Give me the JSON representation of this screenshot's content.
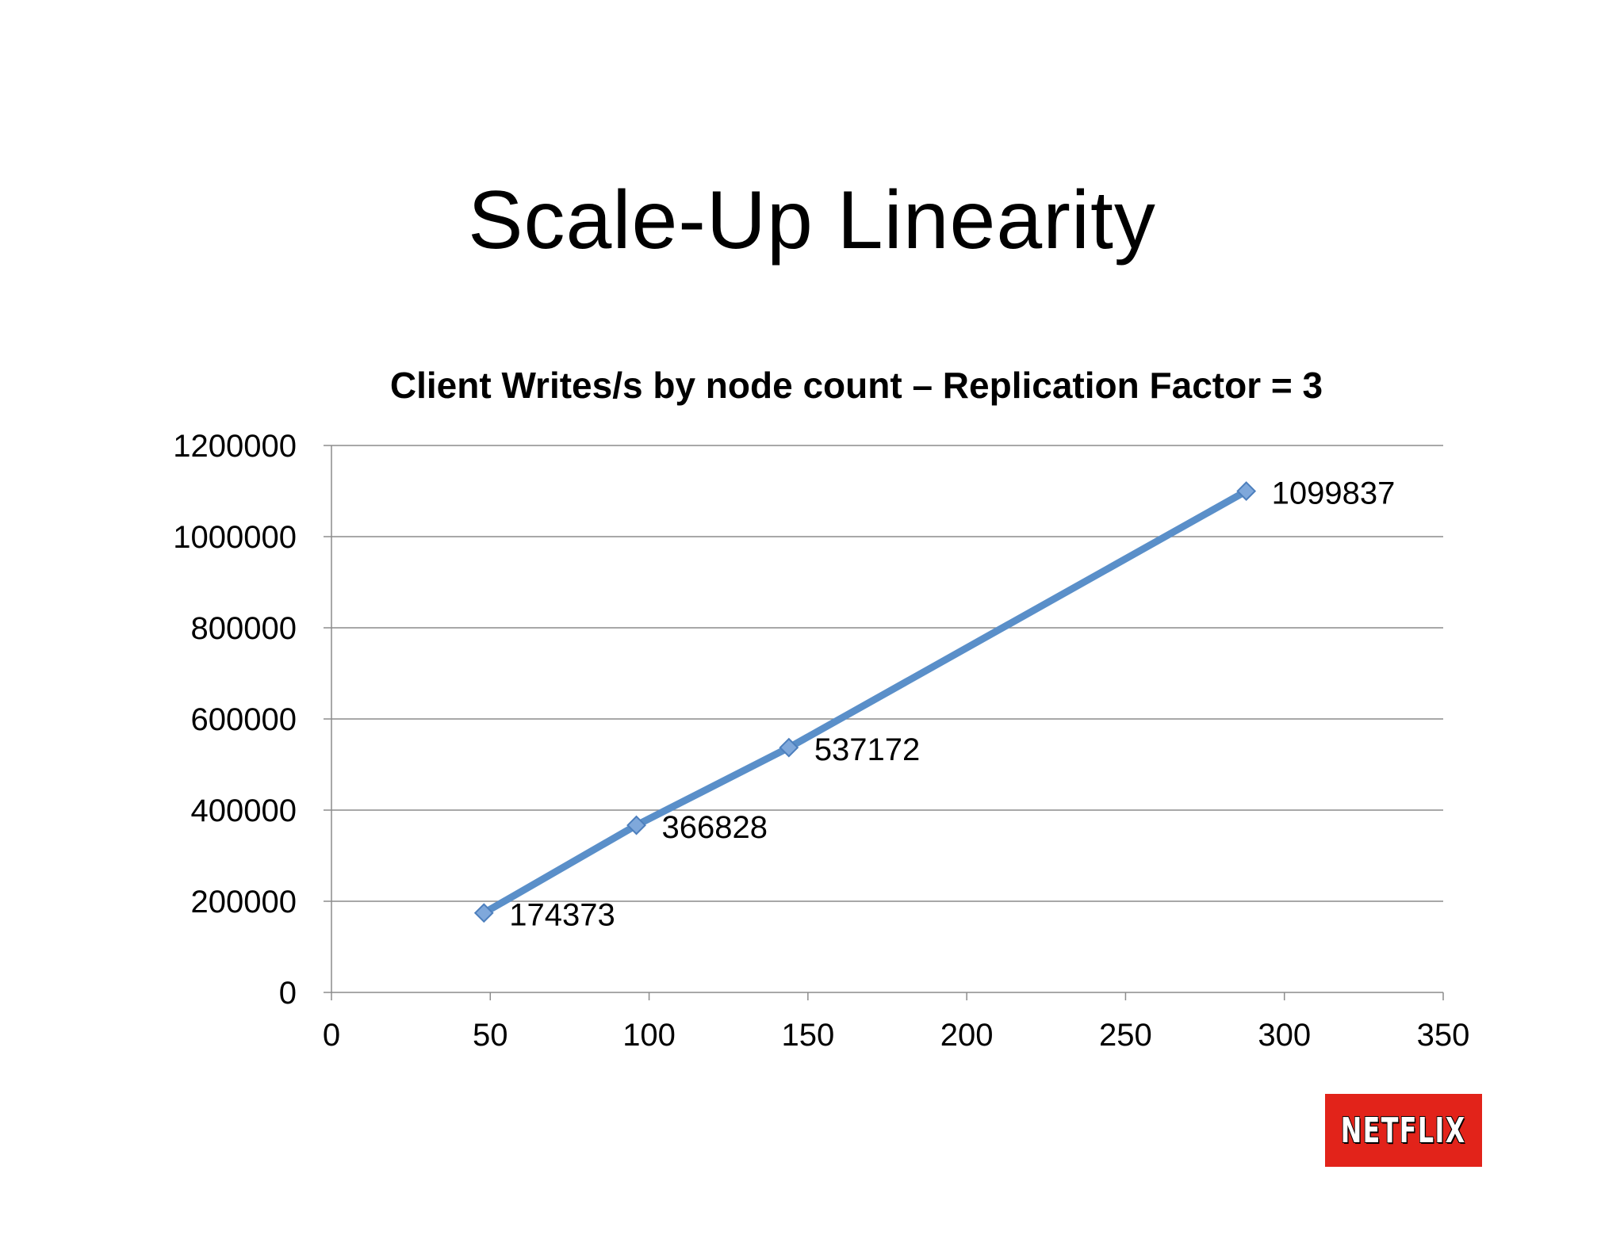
{
  "slide": {
    "title": "Scale-Up Linearity"
  },
  "logo": {
    "text": "NETFLIX",
    "color": "#e2231a"
  },
  "chart_data": {
    "type": "line",
    "title": "Client Writes/s by node count – Replication Factor = 3",
    "xlabel": "",
    "ylabel": "",
    "xlim": [
      0,
      350
    ],
    "ylim": [
      0,
      1200000
    ],
    "x_ticks": [
      0,
      50,
      100,
      150,
      200,
      250,
      300,
      350
    ],
    "y_ticks": [
      0,
      200000,
      400000,
      600000,
      800000,
      1000000,
      1200000
    ],
    "grid": "horizontal",
    "legend": "none",
    "series": [
      {
        "color": "#5a8fc9",
        "marker": "diamond",
        "x": [
          48,
          96,
          144,
          288
        ],
        "y": [
          174373,
          366828,
          537172,
          1099837
        ],
        "labels": [
          "174373",
          "366828",
          "537172",
          "1099837"
        ]
      }
    ]
  }
}
